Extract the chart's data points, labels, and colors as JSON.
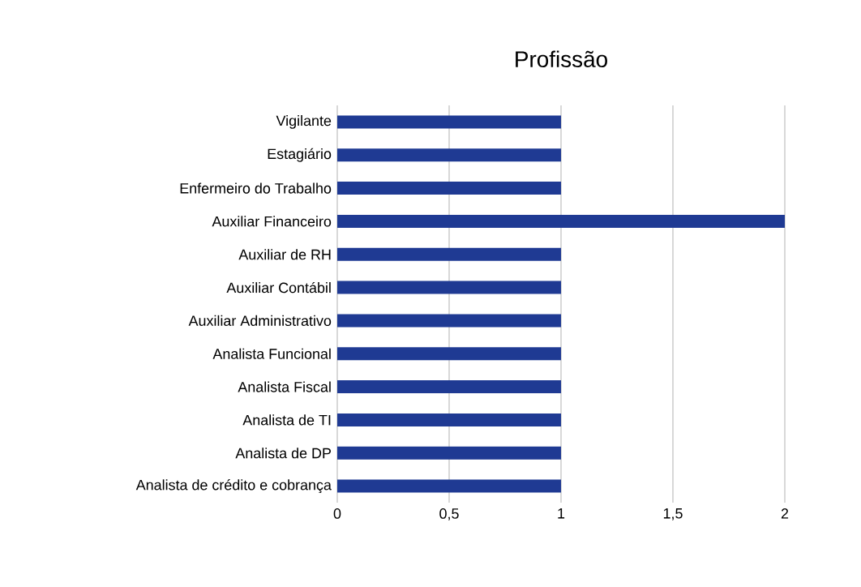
{
  "chart_data": {
    "type": "bar",
    "orientation": "horizontal",
    "title": "Profissão",
    "categories": [
      "Vigilante",
      "Estagiário",
      "Enfermeiro do Trabalho",
      "Auxiliar Financeiro",
      "Auxiliar de RH",
      "Auxiliar Contábil",
      "Auxiliar Administrativo",
      "Analista Funcional",
      "Analista Fiscal",
      "Analista de TI",
      "Analista de DP",
      "Analista de crédito e cobrança"
    ],
    "values": [
      1,
      1,
      1,
      2,
      1,
      1,
      1,
      1,
      1,
      1,
      1,
      1
    ],
    "color": "#1f3a93",
    "xlim": [
      0,
      2
    ],
    "xticks": [
      0,
      {
        "value": 0.5,
        "label": "0,5"
      },
      1,
      {
        "value": 1.5,
        "label": "1,5"
      },
      2
    ],
    "grid": "x"
  }
}
